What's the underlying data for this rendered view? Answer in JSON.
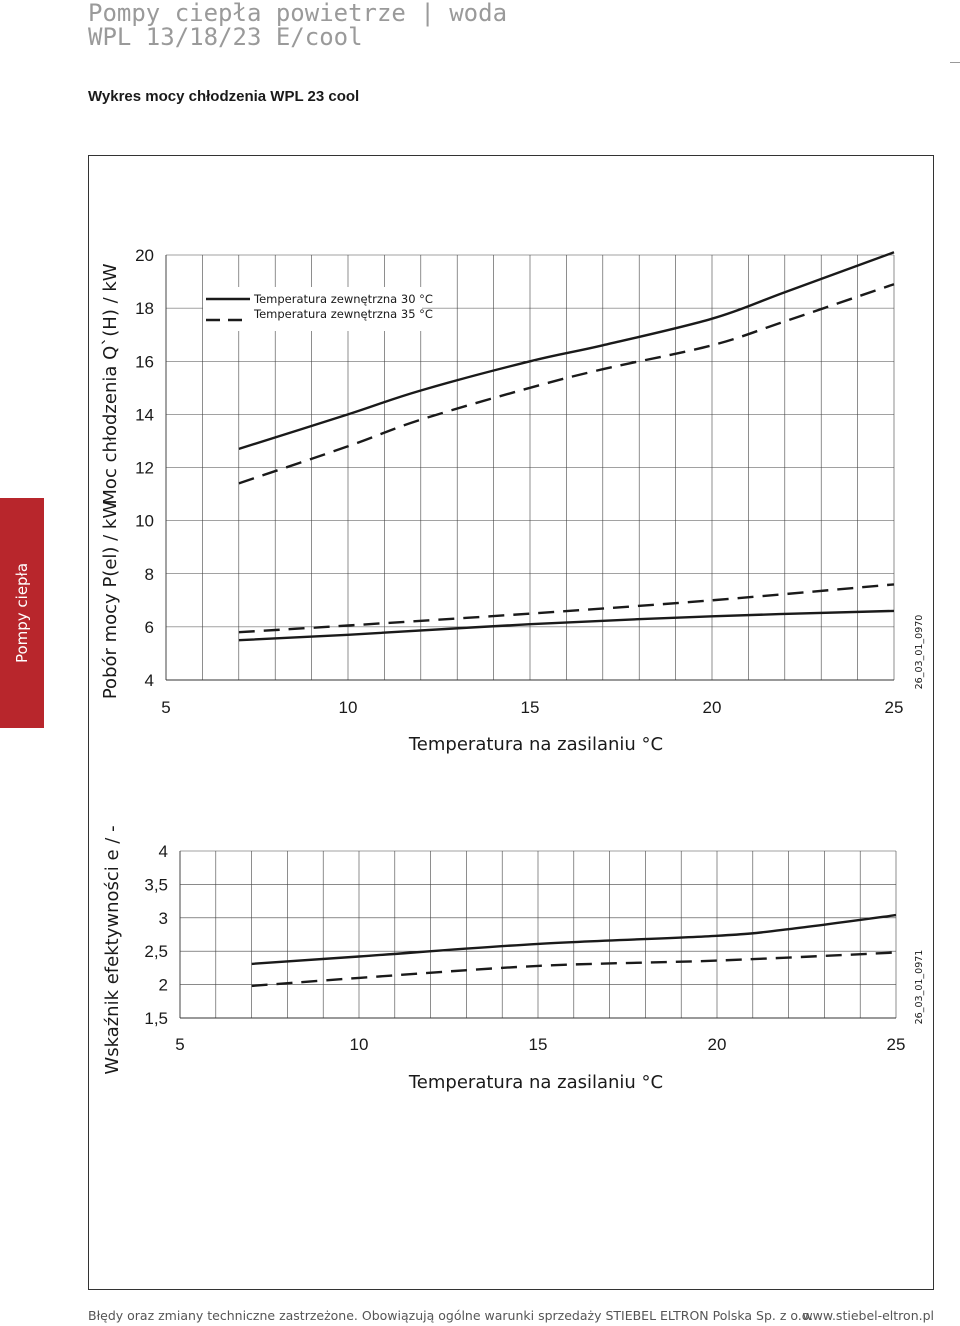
{
  "header": {
    "line1": "Pompy ciepła powietrze | woda",
    "line2": "WPL 13/18/23 E/cool"
  },
  "section_title": "Wykres mocy chłodzenia WPL 23 cool",
  "side_tab": {
    "label": "Pompy ciepła",
    "color": "#b8262c"
  },
  "footer": {
    "left": "Błędy oraz zmiany techniczne zastrzeżone. Obowiązują ogólne warunki sprzedaży STIEBEL ELTRON Polska Sp. z o.o.",
    "right": "www.stiebel-eltron.pl"
  },
  "chart_data": [
    {
      "type": "line",
      "xlabel": "Temperatura na zasilaniu °C",
      "ylabel_top": "Moc chłodzenia Q`(H) / kW",
      "ylabel_bottom": "Pobór mocy P(el) / kW",
      "xlim": [
        5,
        25
      ],
      "ylim": [
        4,
        20
      ],
      "xticks": [
        "5",
        "10",
        "15",
        "20",
        "25"
      ],
      "yticks": [
        "4",
        "6",
        "8",
        "10",
        "12",
        "14",
        "16",
        "18",
        "20"
      ],
      "grid": true,
      "legend_position": "top-left",
      "code": "26_03_01_0970",
      "series": [
        {
          "name": "Temperatura zewnętrzna 30 °C",
          "style": "solid",
          "group": "cooling",
          "x": [
            7,
            10,
            12,
            15,
            17,
            20,
            22,
            25
          ],
          "y": [
            12.7,
            14.0,
            14.9,
            16.0,
            16.6,
            17.6,
            18.6,
            20.1
          ]
        },
        {
          "name": "Temperatura zewnętrzna 35 °C",
          "style": "dashed",
          "group": "cooling",
          "x": [
            7,
            10,
            12,
            15,
            17,
            20,
            22,
            25
          ],
          "y": [
            11.4,
            12.8,
            13.8,
            15.0,
            15.7,
            16.6,
            17.5,
            18.9
          ]
        },
        {
          "style": "solid",
          "group": "power",
          "x": [
            7,
            10,
            15,
            20,
            25
          ],
          "y": [
            5.5,
            5.7,
            6.1,
            6.4,
            6.6
          ]
        },
        {
          "style": "dashed",
          "group": "power",
          "x": [
            7,
            10,
            15,
            20,
            25
          ],
          "y": [
            5.8,
            6.05,
            6.5,
            7.0,
            7.6
          ]
        }
      ],
      "legend_labels": [
        "Temperatura zewnętrzna 30 °C",
        "Temperatura zewnętrzna 35 °C"
      ]
    },
    {
      "type": "line",
      "xlabel": "Temperatura na zasilaniu °C",
      "ylabel": "Wskaźnik efektywności e / -",
      "xlim": [
        5,
        25
      ],
      "ylim": [
        1.5,
        4
      ],
      "xticks": [
        "5",
        "10",
        "15",
        "20",
        "25"
      ],
      "yticks": [
        "1,5",
        "2",
        "2,5",
        "3",
        "3,5",
        "4"
      ],
      "grid": true,
      "code": "26_03_01_0971",
      "series": [
        {
          "style": "solid",
          "x": [
            7,
            10,
            15,
            20,
            22,
            25
          ],
          "y": [
            2.31,
            2.42,
            2.61,
            2.73,
            2.83,
            3.04
          ]
        },
        {
          "style": "dashed",
          "x": [
            7,
            10,
            15,
            20,
            25
          ],
          "y": [
            1.98,
            2.1,
            2.28,
            2.36,
            2.48
          ]
        }
      ]
    }
  ]
}
